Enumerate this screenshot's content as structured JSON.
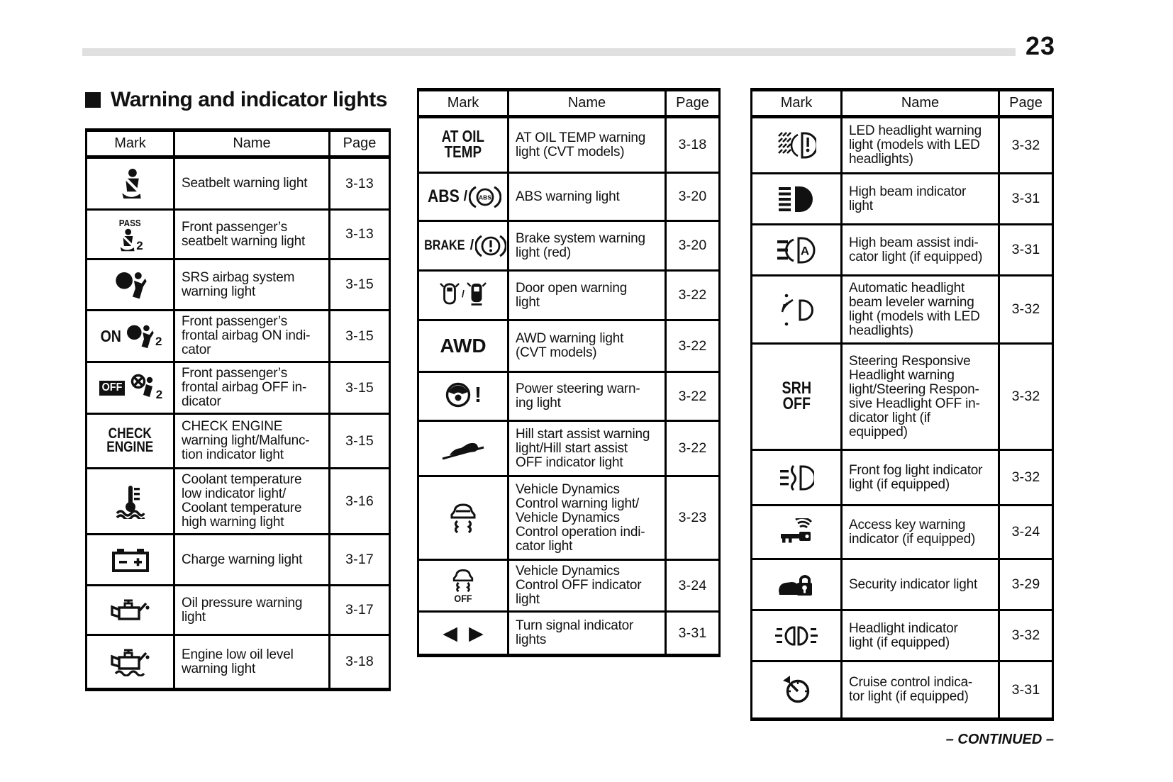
{
  "page_number": "23",
  "title": "Warning and indicator lights",
  "continued": "– CONTINUED –",
  "tables": [
    {
      "columns": [
        "Mark",
        "Name",
        "Page"
      ],
      "rows": [
        {
          "icon": "seatbelt-warning-icon",
          "name_lines": [
            "Seatbelt warning light"
          ],
          "page": "3-13"
        },
        {
          "icon": "passenger-seatbelt-icon",
          "mark_text": "PASS",
          "mark_sub": "2",
          "name_lines": [
            "Front passenger’s",
            "seatbelt warning light"
          ],
          "page": "3-13"
        },
        {
          "icon": "srs-airbag-icon",
          "name_lines": [
            "SRS airbag system",
            "warning light"
          ],
          "page": "3-15"
        },
        {
          "icon": "airbag-on-icon",
          "mark_text": "ON",
          "mark_sub": "2",
          "name_lines": [
            "Front passenger’s",
            "frontal airbag ON indi-",
            "cator"
          ],
          "page": "3-15"
        },
        {
          "icon": "airbag-off-icon",
          "mark_text": "OFF",
          "mark_sub": "2",
          "name_lines": [
            "Front passenger’s",
            "frontal airbag OFF in-",
            "dicator"
          ],
          "page": "3-15"
        },
        {
          "icon": "check-engine-text-icon",
          "mark_text": "CHECK\nENGINE",
          "name_lines": [
            "CHECK ENGINE",
            "warning light/Malfunc-",
            "tion indicator light"
          ],
          "page": "3-15"
        },
        {
          "icon": "coolant-temperature-icon",
          "name_lines": [
            "Coolant temperature",
            "low indicator light/",
            "Coolant temperature",
            "high warning light"
          ],
          "page": "3-16"
        },
        {
          "icon": "battery-charge-icon",
          "name_lines": [
            "Charge warning light"
          ],
          "page": "3-17"
        },
        {
          "icon": "oil-pressure-icon",
          "name_lines": [
            "Oil pressure warning",
            "light"
          ],
          "page": "3-17"
        },
        {
          "icon": "oil-level-icon",
          "name_lines": [
            "Engine low oil level",
            "warning light"
          ],
          "page": "3-18"
        }
      ]
    },
    {
      "columns": [
        "Mark",
        "Name",
        "Page"
      ],
      "rows": [
        {
          "icon": "at-oil-temp-text-icon",
          "mark_text": "AT OIL\nTEMP",
          "name_lines": [
            "AT OIL TEMP warning",
            "light (CVT models)"
          ],
          "page": "3-18"
        },
        {
          "icon": "abs-icon",
          "mark_text": "ABS",
          "name_lines": [
            "ABS warning light"
          ],
          "page": "3-20"
        },
        {
          "icon": "brake-icon",
          "mark_text": "BRAKE",
          "name_lines": [
            "Brake system warning",
            "light (red)"
          ],
          "page": "3-20"
        },
        {
          "icon": "door-open-icon",
          "name_lines": [
            "Door open warning",
            "light"
          ],
          "page": "3-22"
        },
        {
          "icon": "awd-text-icon",
          "mark_text": "AWD",
          "name_lines": [
            "AWD warning light",
            "(CVT models)"
          ],
          "page": "3-22"
        },
        {
          "icon": "power-steering-icon",
          "name_lines": [
            "Power steering warn-",
            "ing light"
          ],
          "page": "3-22"
        },
        {
          "icon": "hill-start-assist-icon",
          "name_lines": [
            "Hill start assist warning",
            "light/Hill start assist",
            "OFF indicator light"
          ],
          "page": "3-22"
        },
        {
          "icon": "vdc-icon",
          "name_lines": [
            "Vehicle Dynamics",
            "Control warning light/",
            "Vehicle Dynamics",
            "Control operation indi-",
            "cator light"
          ],
          "page": "3-23"
        },
        {
          "icon": "vdc-off-icon",
          "mark_text": "OFF",
          "name_lines": [
            "Vehicle Dynamics",
            "Control OFF indicator",
            "light"
          ],
          "page": "3-24"
        },
        {
          "icon": "turn-signal-icon",
          "name_lines": [
            "Turn signal indicator",
            "lights"
          ],
          "page": "3-31"
        }
      ]
    },
    {
      "columns": [
        "Mark",
        "Name",
        "Page"
      ],
      "rows": [
        {
          "icon": "led-headlight-warning-icon",
          "name_lines": [
            "LED headlight warning",
            "light (models with LED",
            "headlights)"
          ],
          "page": "3-32"
        },
        {
          "icon": "high-beam-icon",
          "name_lines": [
            "High beam indicator",
            "light"
          ],
          "page": "3-31"
        },
        {
          "icon": "high-beam-assist-icon",
          "mark_text": "A",
          "name_lines": [
            "High beam assist indi-",
            "cator light (if equipped)"
          ],
          "page": "3-31"
        },
        {
          "icon": "headlight-leveler-icon",
          "name_lines": [
            "Automatic headlight",
            "beam leveler warning",
            "light (models with LED",
            "headlights)"
          ],
          "page": "3-32"
        },
        {
          "icon": "srh-off-text-icon",
          "mark_text": "SRH\nOFF",
          "name_lines": [
            "Steering Responsive",
            "Headlight warning",
            "light/Steering Respon-",
            "sive Headlight OFF in-",
            "dicator light (if",
            "equipped)"
          ],
          "page": "3-32"
        },
        {
          "icon": "front-fog-icon",
          "name_lines": [
            "Front fog light indicator",
            "light (if equipped)"
          ],
          "page": "3-32"
        },
        {
          "icon": "access-key-icon",
          "name_lines": [
            "Access key warning",
            "indicator (if equipped)"
          ],
          "page": "3-24"
        },
        {
          "icon": "security-icon",
          "name_lines": [
            "Security indicator light"
          ],
          "page": "3-29"
        },
        {
          "icon": "headlight-indicator-icon",
          "name_lines": [
            "Headlight indicator",
            "light (if equipped)"
          ],
          "page": "3-32"
        },
        {
          "icon": "cruise-control-icon",
          "name_lines": [
            "Cruise control indica-",
            "tor light (if equipped)"
          ],
          "page": "3-31"
        }
      ]
    }
  ]
}
